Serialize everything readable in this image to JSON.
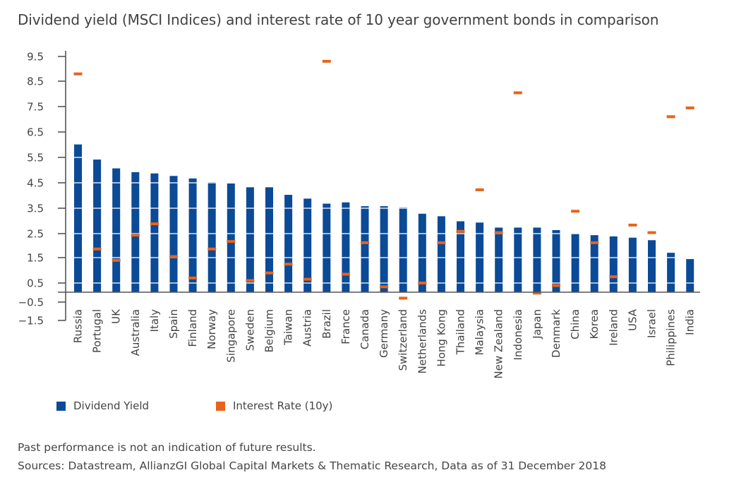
{
  "title": "Dividend yield (MSCI Indices) and interest rate of 10 year government bonds in comparison",
  "legend": [
    {
      "label": "Dividend Yield",
      "color": "#0b4a96"
    },
    {
      "label": "Interest Rate (10y)",
      "color": "#e8631a"
    }
  ],
  "footnotes": [
    "Past performance is not an indication of future results.",
    "Sources: Datastream, AllianzGI Global Capital Markets & Thematic Research, Data as of 31 December 2018"
  ],
  "chart_data": {
    "type": "bar",
    "title": "Dividend yield (MSCI Indices) and interest rate of 10 year government bonds in comparison",
    "xlabel": "",
    "ylabel": "",
    "ylim": [
      -1.5,
      9.5
    ],
    "yticks": [
      "9.5",
      "8.5",
      "7.5",
      "6.5",
      "5.5",
      "4.5",
      "3.5",
      "2.5",
      "1.5",
      "0.5",
      "−0.5",
      "−1.5"
    ],
    "grid": "horizontal white lines through bars at tick levels",
    "legend_position": "bottom-left",
    "categories": [
      "Russia",
      "Portugal",
      "UK",
      "Australia",
      "Italy",
      "Spain",
      "Finland",
      "Norway",
      "Singapore",
      "Sweden",
      "Belgium",
      "Taiwan",
      "Austria",
      "Brazil",
      "France",
      "Canada",
      "Germany",
      "Switzerland",
      "Netherlands",
      "Hong Kong",
      "Thailand",
      "Malaysia",
      "New Zealand",
      "Indonesia",
      "Japan",
      "Denmark",
      "China",
      "Korea",
      "Ireland",
      "USA",
      "Israel",
      "Philippines",
      "India"
    ],
    "series": [
      {
        "name": "Dividend Yield",
        "type": "bar",
        "color": "#0b4a96",
        "values": [
          6.0,
          5.4,
          5.05,
          4.9,
          4.85,
          4.75,
          4.65,
          4.5,
          4.45,
          4.3,
          4.3,
          4.0,
          3.85,
          3.65,
          3.7,
          3.55,
          3.55,
          3.5,
          3.25,
          3.15,
          2.95,
          2.9,
          2.7,
          2.7,
          2.7,
          2.6,
          2.45,
          2.4,
          2.35,
          2.3,
          2.2,
          1.7,
          1.45
        ]
      },
      {
        "name": "Interest Rate (10y)",
        "type": "marker",
        "color": "#e8631a",
        "values": [
          8.8,
          1.85,
          1.4,
          2.4,
          2.85,
          1.55,
          0.7,
          1.85,
          2.15,
          0.6,
          0.9,
          1.25,
          0.65,
          9.3,
          0.85,
          2.1,
          0.35,
          -0.1,
          0.5,
          2.1,
          2.55,
          4.2,
          2.5,
          8.05,
          0.1,
          0.4,
          3.35,
          2.1,
          0.75,
          2.8,
          2.5,
          7.1,
          7.45
        ]
      }
    ]
  }
}
